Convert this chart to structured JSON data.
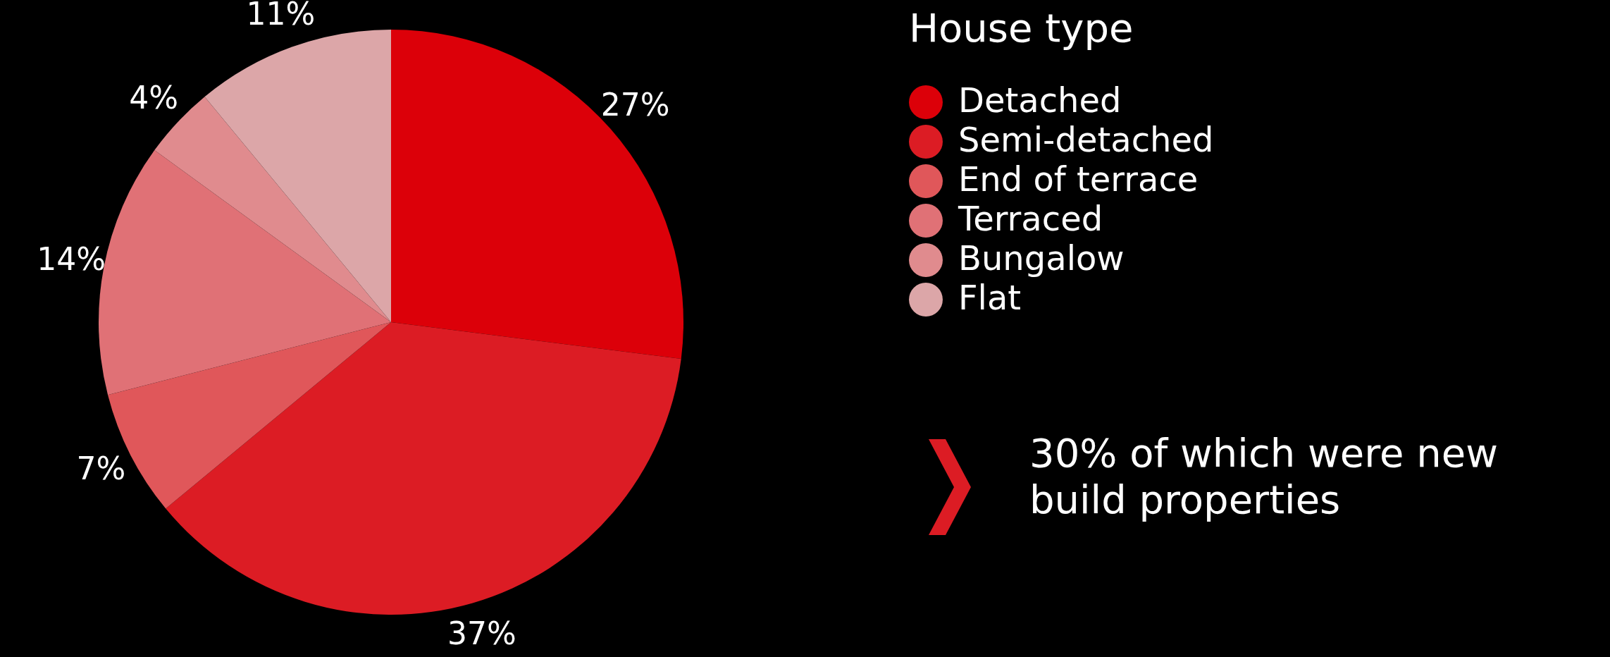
{
  "chart_data": {
    "type": "pie",
    "legend_title": "House type",
    "categories": [
      "Detached",
      "Semi-detached",
      "End of terrace",
      "Terraced",
      "Bungalow",
      "Flat"
    ],
    "values": [
      27,
      37,
      7,
      14,
      4,
      11
    ],
    "colors": [
      "#dc0009",
      "#dc1c24",
      "#e0575a",
      "#e07176",
      "#e08b8e",
      "#dca6a8"
    ],
    "value_labels": [
      "27%",
      "37%",
      "7%",
      "14%",
      "4%",
      "11%"
    ],
    "legend": "right",
    "annotations": [
      "30% of which were new build properties"
    ]
  }
}
